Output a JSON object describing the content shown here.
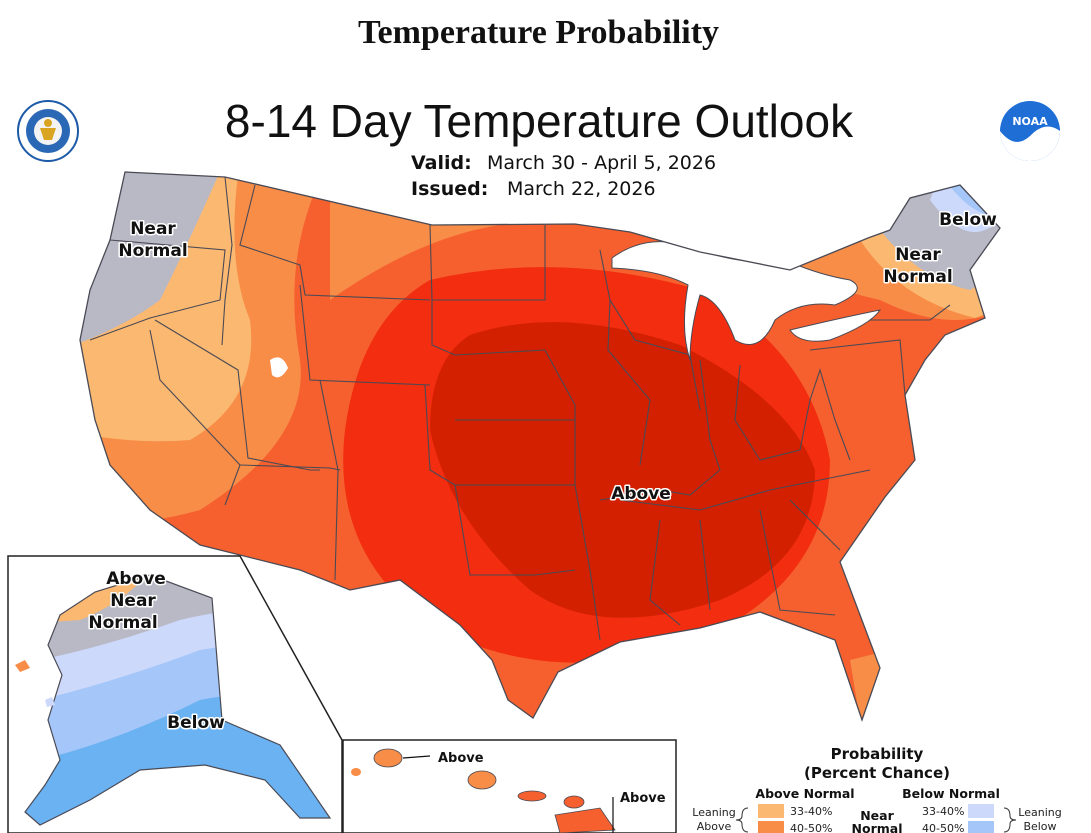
{
  "page_heading": "Temperature Probability",
  "map": {
    "title": "8-14 Day Temperature Outlook",
    "valid_label": "Valid:",
    "valid_dates": "March 30 - April 5, 2026",
    "issued_label": "Issued:",
    "issued_date": "March 22, 2026",
    "labels": {
      "nw_near_1": "Near",
      "nw_near_2": "Normal",
      "ne_below": "Below",
      "ne_near_1": "Near",
      "ne_near_2": "Normal",
      "center_above": "Above"
    },
    "noaa_logo_text": "NOAA"
  },
  "alaska": {
    "above": "Above",
    "near_1": "Near",
    "near_2": "Normal",
    "below": "Below"
  },
  "hawaii": {
    "above_1": "Above",
    "above_2": "Above"
  },
  "legend": {
    "title_1": "Probability",
    "title_2": "(Percent Chance)",
    "above_head": "Above Normal",
    "below_head": "Below Normal",
    "above_r1": "33-40%",
    "above_r2": "40-50%",
    "below_r1": "33-40%",
    "below_r2": "40-50%",
    "lean_above_1": "Leaning",
    "lean_above_2": "Above",
    "lean_below_1": "Leaning",
    "lean_below_2": "Below",
    "near_1": "Near",
    "near_2": "Normal"
  },
  "colors": {
    "above_33_40": "#fbb870",
    "above_40_50": "#f88d48",
    "above_50_60": "#f5602e",
    "above_60_70": "#f22d10",
    "above_70_80": "#d32000",
    "near_normal": "#b9b9c6",
    "below_33_40": "#cdd9fb",
    "below_40_50": "#a4c6f8",
    "below_50_60": "#6ab2f2"
  }
}
